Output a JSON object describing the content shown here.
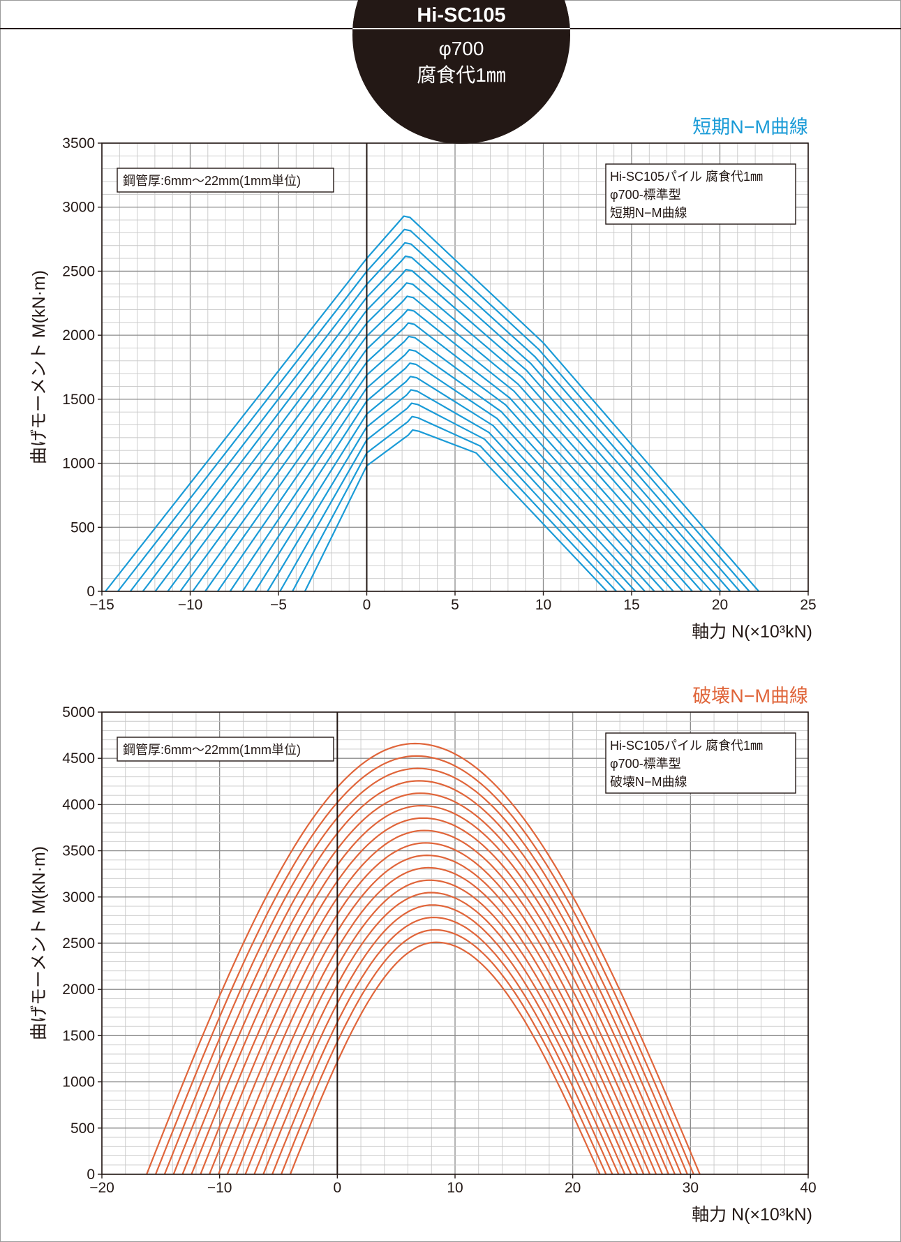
{
  "header": {
    "product": "Hi-SC105",
    "diameter": "φ700",
    "corrosion": "腐食代1㎜"
  },
  "colors": {
    "short_term": "#1a9bd7",
    "failure": "#e0653a",
    "text": "#231815",
    "grid_minor": "#c8c8c8",
    "grid_major": "#8c8c8c"
  },
  "chart_data": [
    {
      "type": "line",
      "title": "短期N−M曲線",
      "xlabel": "軸力 N(×10³kN)",
      "ylabel": "曲げモーメント M(kN·m)",
      "xlim": [
        -15,
        25
      ],
      "ylim": [
        0,
        3500
      ],
      "xticks": [
        -15,
        -10,
        -5,
        0,
        5,
        10,
        15,
        20,
        25
      ],
      "yticks": [
        0,
        500,
        1000,
        1500,
        2000,
        2500,
        3000,
        3500
      ],
      "xtick_labels": [
        "−15",
        "−10",
        "−5",
        "0",
        "5",
        "10",
        "15",
        "20",
        "25"
      ],
      "ytick_labels": [
        "0",
        "500",
        "1000",
        "1500",
        "2000",
        "2500",
        "3000",
        "3500"
      ],
      "grid": true,
      "note": "鋼管厚:6mm〜22mm(1mm単位)",
      "legend": [
        "Hi-SC105パイル 腐食代1㎜",
        "φ700-標準型",
        "短期N−M曲線"
      ],
      "curve_family": {
        "count": 17,
        "thickness_mm": [
          6,
          22
        ],
        "n_at_m0_left": [
          -3.5,
          -14.8
        ],
        "n_at_m0_right": [
          13.6,
          22.2
        ],
        "peak_n": [
          2.6,
          2.1
        ],
        "peak_m": [
          1260,
          2930
        ],
        "knee_n": [
          6.2,
          10
        ],
        "knee_m": [
          1080,
          1940
        ],
        "m_at_n0": [
          980,
          2600
        ]
      }
    },
    {
      "type": "line",
      "title": "破壊N−M曲線",
      "xlabel": "軸力 N(×10³kN)",
      "ylabel": "曲げモーメント M(kN·m)",
      "xlim": [
        -20,
        40
      ],
      "ylim": [
        0,
        5000
      ],
      "xticks": [
        -20,
        -10,
        0,
        10,
        20,
        30,
        40
      ],
      "yticks": [
        0,
        500,
        1000,
        1500,
        2000,
        2500,
        3000,
        3500,
        4000,
        4500,
        5000
      ],
      "xtick_labels": [
        "−20",
        "−10",
        "0",
        "10",
        "20",
        "30",
        "40"
      ],
      "ytick_labels": [
        "0",
        "500",
        "1000",
        "1500",
        "2000",
        "2500",
        "3000",
        "3500",
        "4000",
        "4500",
        "5000"
      ],
      "grid": true,
      "note": "鋼管厚:6mm〜22mm(1mm単位)",
      "legend": [
        "Hi-SC105パイル 腐食代1㎜",
        "φ700-標準型",
        "破壊N−M曲線"
      ],
      "curve_family": {
        "count": 17,
        "thickness_mm": [
          6,
          22
        ],
        "n_at_m0_left": [
          -4,
          -16.2
        ],
        "n_at_m0_right": [
          22.3,
          30.8
        ],
        "peak_n": [
          8.4,
          6.6
        ],
        "peak_m": [
          2510,
          4660
        ],
        "m_at_n0": [
          1200,
          4200
        ]
      }
    }
  ]
}
